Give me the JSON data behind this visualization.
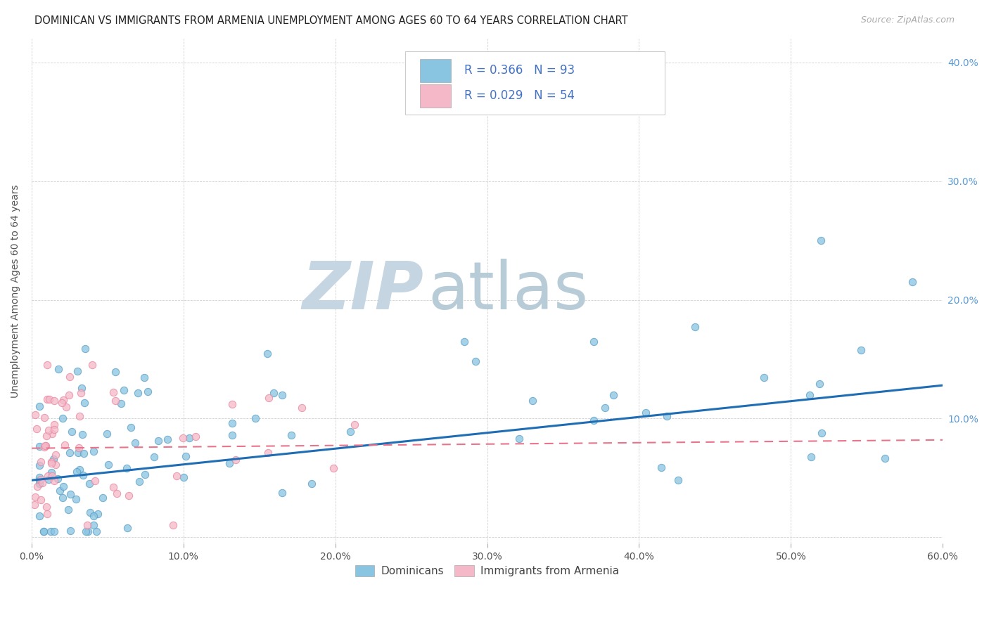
{
  "title": "DOMINICAN VS IMMIGRANTS FROM ARMENIA UNEMPLOYMENT AMONG AGES 60 TO 64 YEARS CORRELATION CHART",
  "source": "Source: ZipAtlas.com",
  "ylabel": "Unemployment Among Ages 60 to 64 years",
  "xlim": [
    0.0,
    0.6
  ],
  "ylim": [
    -0.005,
    0.42
  ],
  "xticks": [
    0.0,
    0.1,
    0.2,
    0.3,
    0.4,
    0.5,
    0.6
  ],
  "yticks": [
    0.0,
    0.1,
    0.2,
    0.3,
    0.4
  ],
  "dominicans_color": "#89c4e1",
  "dominicans_edge": "#5a9fc8",
  "armenia_color": "#f4b8c8",
  "armenia_edge": "#e888a0",
  "trendline_dom_color": "#1f6eb5",
  "trendline_arm_color": "#e8748a",
  "legend_text_color": "#4472c4",
  "background_color": "#ffffff",
  "watermark_zip_color": "#c8d8e8",
  "watermark_atlas_color": "#b8ccd8",
  "title_fontsize": 10.5,
  "source_fontsize": 9,
  "axis_label_color": "#555555",
  "tick_color": "#555555",
  "right_tick_color": "#5b9bd5",
  "grid_color": "#cccccc",
  "dom_trendline_start_y": 0.048,
  "dom_trendline_end_y": 0.128,
  "arm_trendline_start_y": 0.075,
  "arm_trendline_end_y": 0.082
}
